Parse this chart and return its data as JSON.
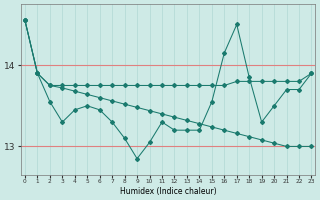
{
  "xlabel": "Humidex (Indice chaleur)",
  "bg_color": "#ceeae6",
  "grid_color_x": "#b0d8d4",
  "grid_color_y": "#e08080",
  "line_color": "#1a7a6e",
  "series": [
    [
      14.55,
      13.9,
      13.75,
      13.75,
      13.75,
      13.75,
      13.75,
      13.75,
      13.75,
      13.75,
      13.75,
      13.75,
      13.75,
      13.75,
      13.75,
      13.75,
      13.75,
      13.8,
      13.8,
      13.8,
      13.8,
      13.8,
      13.8,
      13.9
    ],
    [
      14.55,
      13.9,
      13.75,
      13.72,
      13.68,
      13.64,
      13.6,
      13.56,
      13.52,
      13.48,
      13.44,
      13.4,
      13.36,
      13.32,
      13.28,
      13.24,
      13.2,
      13.16,
      13.12,
      13.08,
      13.04,
      13.0,
      13.0,
      13.0
    ],
    [
      14.55,
      13.9,
      13.55,
      13.3,
      13.45,
      13.5,
      13.45,
      13.3,
      13.1,
      12.85,
      13.05,
      13.3,
      13.2,
      13.2,
      13.2,
      13.55,
      14.15,
      14.5,
      13.85,
      13.3,
      13.5,
      13.7,
      13.7,
      13.9
    ]
  ],
  "x_values": [
    0,
    1,
    2,
    3,
    4,
    5,
    6,
    7,
    8,
    9,
    10,
    11,
    12,
    13,
    14,
    15,
    16,
    17,
    18,
    19,
    20,
    21,
    22,
    23
  ],
  "ylim": [
    12.65,
    14.75
  ],
  "yticks": [
    13,
    14
  ],
  "xlim": [
    -0.3,
    23.3
  ]
}
